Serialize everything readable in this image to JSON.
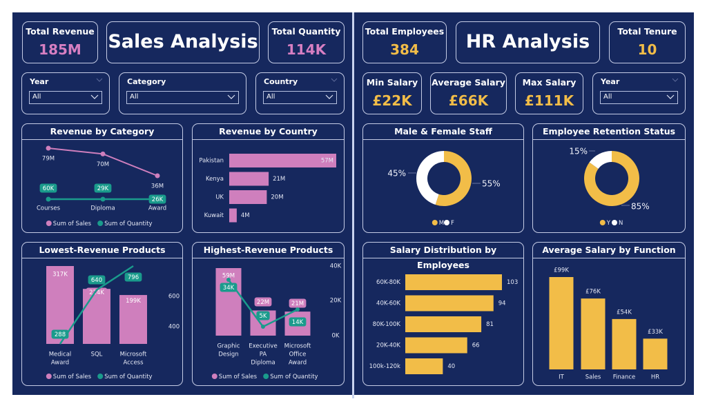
{
  "sales": {
    "title": "Sales Analysis",
    "kpis": {
      "total_revenue": {
        "label": "Total Revenue",
        "value": "185M"
      },
      "total_quantity": {
        "label": "Total Quantity",
        "value": "114K"
      }
    },
    "filters": {
      "year": {
        "label": "Year",
        "value": "All"
      },
      "category": {
        "label": "Category",
        "value": "All"
      },
      "country": {
        "label": "Country",
        "value": "All"
      }
    }
  },
  "hr": {
    "title": "HR Analysis",
    "kpis": {
      "total_employees": {
        "label": "Total Employees",
        "value": "384"
      },
      "total_tenure": {
        "label": "Total Tenure",
        "value": "10"
      },
      "min_salary": {
        "label": "Min Salary",
        "value": "£22K"
      },
      "avg_salary": {
        "label": "Average Salary",
        "value": "£66K"
      },
      "max_salary": {
        "label": "Max Salary",
        "value": "£111K"
      }
    },
    "filters": {
      "year": {
        "label": "Year",
        "value": "All"
      }
    }
  },
  "colors": {
    "background": "#16285e",
    "pink": "#cf7fbd",
    "teal": "#1a9b8c",
    "gold": "#f2bd48",
    "white": "#ffffff"
  },
  "chart_data": [
    {
      "id": "revenue_by_category",
      "type": "line",
      "title": "Revenue by Category",
      "categories": [
        "Courses",
        "Diploma",
        "Award"
      ],
      "series": [
        {
          "name": "Sum of Sales",
          "values": [
            79,
            70,
            36
          ],
          "labels": [
            "79M",
            "70M",
            "36M"
          ],
          "color": "#cf7fbd"
        },
        {
          "name": "Sum of Quantity",
          "values": [
            60,
            29,
            26
          ],
          "labels": [
            "60K",
            "29K",
            "26K"
          ],
          "color": "#1a9b8c"
        }
      ],
      "legend": [
        "Sum of Sales",
        "Sum of Quantity"
      ],
      "legend_position": "bottom"
    },
    {
      "id": "revenue_by_country",
      "type": "bar",
      "orientation": "horizontal",
      "title": "Revenue by Country",
      "categories": [
        "Pakistan",
        "Kenya",
        "UK",
        "Kuwait"
      ],
      "values": [
        57,
        21,
        20,
        4
      ],
      "labels": [
        "57M",
        "21M",
        "20M",
        "4M"
      ],
      "color": "#cf7fbd"
    },
    {
      "id": "lowest_revenue_products",
      "type": "bar",
      "title": "Lowest-Revenue Products",
      "categories": [
        "Medical Award",
        "SQL",
        "Microsoft Access"
      ],
      "series": [
        {
          "name": "Sum of Sales",
          "type": "bar",
          "values": [
            317,
            224,
            199
          ],
          "labels": [
            "317K",
            "224K",
            "199K"
          ],
          "color": "#cf7fbd"
        },
        {
          "name": "Sum of Quantity",
          "type": "line",
          "values": [
            288,
            640,
            796
          ],
          "labels": [
            "288",
            "640",
            "796"
          ],
          "color": "#1a9b8c"
        }
      ],
      "y2_ticks": [
        "600",
        "400"
      ],
      "legend": [
        "Sum of Sales",
        "Sum of Quantity"
      ],
      "legend_position": "bottom"
    },
    {
      "id": "highest_revenue_products",
      "type": "bar",
      "title": "Highest-Revenue Products",
      "categories": [
        "Graphic Design",
        "Executive PA Diploma",
        "Microsoft Office Award"
      ],
      "series": [
        {
          "name": "Sum of Sales",
          "type": "bar",
          "values": [
            59,
            22,
            21
          ],
          "labels": [
            "59M",
            "22M",
            "21M"
          ],
          "color": "#cf7fbd"
        },
        {
          "name": "Sum of Quantity",
          "type": "line",
          "values": [
            34,
            5,
            14
          ],
          "labels": [
            "34K",
            "5K",
            "14K"
          ],
          "color": "#1a9b8c"
        }
      ],
      "y2_ticks": [
        "40K",
        "20K",
        "0K"
      ],
      "y2lim": [
        0,
        40
      ],
      "legend": [
        "Sum of Sales",
        "Sum of Quantity"
      ],
      "legend_position": "bottom"
    },
    {
      "id": "male_female_staff",
      "type": "pie",
      "donut": true,
      "title": "Male & Female Staff",
      "categories": [
        "M",
        "F"
      ],
      "values": [
        55,
        45
      ],
      "labels": [
        "55%",
        "45%"
      ],
      "colors": [
        "#f2bd48",
        "#ffffff"
      ],
      "legend": [
        "M",
        "F"
      ],
      "legend_position": "bottom"
    },
    {
      "id": "employee_retention_status",
      "type": "pie",
      "donut": true,
      "title": "Employee Retention Status",
      "categories": [
        "Y",
        "N"
      ],
      "values": [
        85,
        15
      ],
      "labels": [
        "85%",
        "15%"
      ],
      "colors": [
        "#f2bd48",
        "#ffffff"
      ],
      "legend": [
        "Y",
        "N"
      ],
      "legend_position": "bottom"
    },
    {
      "id": "salary_distribution",
      "type": "bar",
      "orientation": "horizontal",
      "title": "Salary Distribution by Employees",
      "categories": [
        "60K-80K",
        "40K-60K",
        "80K-100K",
        "20K-40K",
        "100k-120k"
      ],
      "values": [
        103,
        94,
        81,
        66,
        40
      ],
      "labels": [
        "103",
        "94",
        "81",
        "66",
        "40"
      ],
      "color": "#f2bd48"
    },
    {
      "id": "avg_salary_by_function",
      "type": "bar",
      "title": "Average Salary by Function",
      "categories": [
        "IT",
        "Sales",
        "Finance",
        "HR"
      ],
      "values": [
        99,
        76,
        54,
        33
      ],
      "labels": [
        "£99K",
        "£76K",
        "£54K",
        "£33K"
      ],
      "color": "#f2bd48"
    }
  ]
}
